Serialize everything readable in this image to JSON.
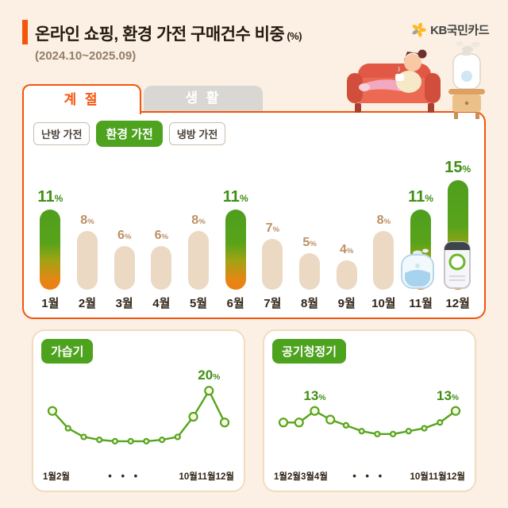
{
  "header": {
    "title": "온라인 쇼핑, 환경 가전 구매건수 비중",
    "unit": "(%)",
    "subtitle": "(2024.10~2025.09)",
    "brand": "KB국민카드"
  },
  "tabs": [
    {
      "label": "계 절",
      "active": true
    },
    {
      "label": "생 활",
      "active": false
    }
  ],
  "filters": [
    {
      "label": "난방 가전",
      "active": false
    },
    {
      "label": "환경 가전",
      "active": true
    },
    {
      "label": "냉방 가전",
      "active": false
    }
  ],
  "colors": {
    "accent_orange": "#f4550a",
    "green": "#4da21e",
    "bar_beige": "#ecd9c4",
    "value_green": "#3f8e12",
    "value_brown": "#bd9066",
    "line_green": "#56a51d",
    "panel_border": "#f2dcc0"
  },
  "chart_data": [
    {
      "id": "monthly_share",
      "type": "bar",
      "title": "환경 가전 월별 구매건수 비중",
      "categories": [
        "1월",
        "2월",
        "3월",
        "4월",
        "5월",
        "6월",
        "7월",
        "8월",
        "9월",
        "10월",
        "11월",
        "12월"
      ],
      "values": [
        11,
        8,
        6,
        6,
        8,
        11,
        7,
        5,
        4,
        8,
        11,
        15
      ],
      "highlighted": [
        true,
        false,
        false,
        false,
        false,
        true,
        false,
        false,
        false,
        false,
        true,
        true
      ],
      "unit": "%",
      "ylim": [
        0,
        16
      ],
      "grid": "off",
      "legend": "off"
    },
    {
      "id": "humidifier_trend",
      "type": "line",
      "title": "가습기",
      "categories": [
        "1월",
        "2월",
        "3월",
        "4월",
        "5월",
        "6월",
        "7월",
        "8월",
        "9월",
        "10월",
        "11월",
        "12월"
      ],
      "values": [
        13,
        7,
        4,
        3,
        2.5,
        2.5,
        2.5,
        3,
        4,
        11,
        20,
        9
      ],
      "unit": "%",
      "ylim": [
        0,
        22
      ],
      "point_labels": [
        {
          "index": 10,
          "value": "20"
        }
      ],
      "emphasis": [
        0,
        9,
        10,
        11
      ],
      "x_axis": {
        "left": "1월2월",
        "middle": "• • •",
        "right": "10월11월12월"
      },
      "grid": "off",
      "legend": "off"
    },
    {
      "id": "air_purifier_trend",
      "type": "line",
      "title": "공기청정기",
      "categories": [
        "1월",
        "2월",
        "3월",
        "4월",
        "5월",
        "6월",
        "7월",
        "8월",
        "9월",
        "10월",
        "11월",
        "12월"
      ],
      "values": [
        9,
        9,
        13,
        10,
        8,
        6,
        5,
        5,
        6,
        7,
        9,
        13
      ],
      "unit": "%",
      "ylim": [
        0,
        22
      ],
      "point_labels": [
        {
          "index": 2,
          "value": "13"
        },
        {
          "index": 11,
          "value": "13"
        }
      ],
      "emphasis": [
        0,
        1,
        2,
        3,
        11
      ],
      "x_axis": {
        "left": "1월2월3월4월",
        "middle": "• • •",
        "right": "10월11월12월"
      },
      "grid": "off",
      "legend": "off"
    }
  ]
}
